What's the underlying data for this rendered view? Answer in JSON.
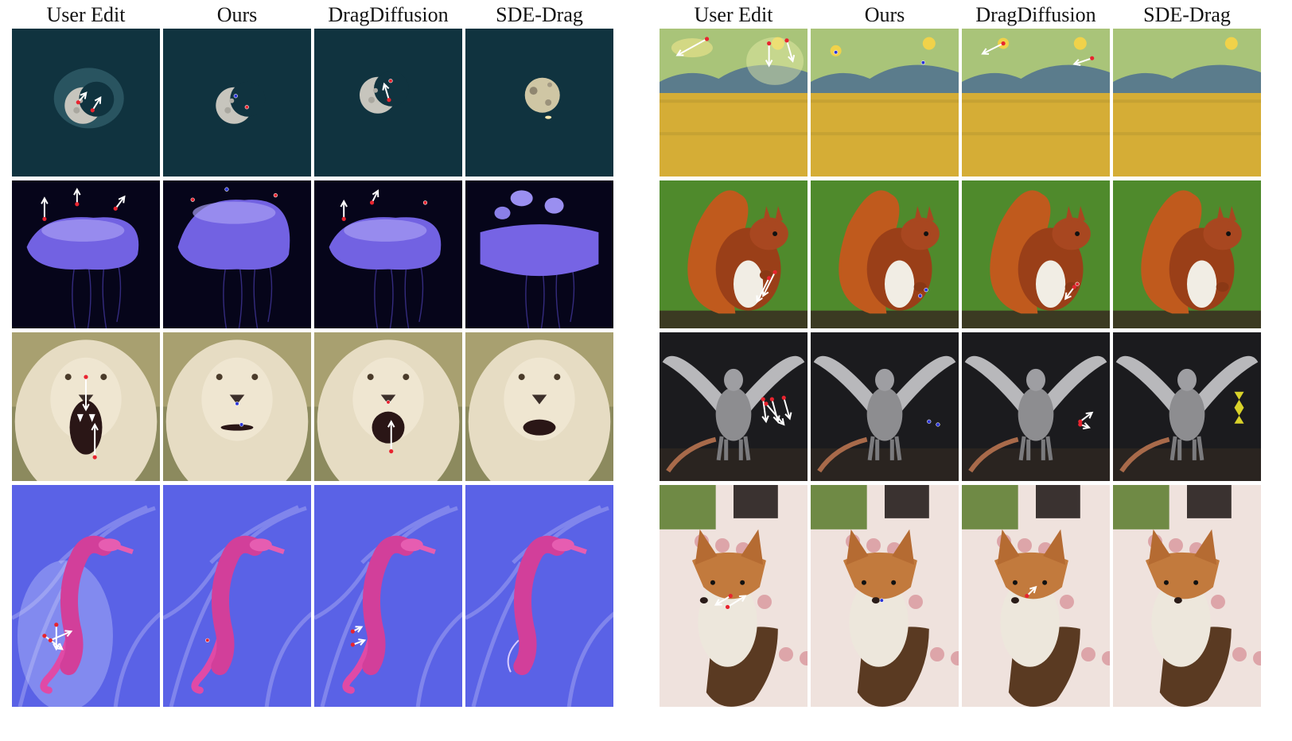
{
  "figure": {
    "left_panel": {
      "column_headers": [
        "User Edit",
        "Ours",
        "DragDiffusion",
        "SDE-Drag"
      ],
      "rows": [
        {
          "subject": "moon",
          "thumbnails": [
            "moon-user-edit",
            "moon-ours",
            "moon-dragdiffusion",
            "moon-sde-drag"
          ]
        },
        {
          "subject": "jellyfish",
          "thumbnails": [
            "jellyfish-user-edit",
            "jellyfish-ours",
            "jellyfish-dragdiffusion",
            "jellyfish-sde-drag"
          ]
        },
        {
          "subject": "lion",
          "thumbnails": [
            "lion-user-edit",
            "lion-ours",
            "lion-dragdiffusion",
            "lion-sde-drag"
          ]
        },
        {
          "subject": "seahorse",
          "thumbnails": [
            "seahorse-user-edit",
            "seahorse-ours",
            "seahorse-dragdiffusion",
            "seahorse-sde-drag"
          ]
        }
      ]
    },
    "right_panel": {
      "column_headers": [
        "User Edit",
        "Ours",
        "DragDiffusion",
        "SDE-Drag"
      ],
      "rows": [
        {
          "subject": "wheat-field-painting",
          "thumbnails": [
            "painting-user-edit",
            "painting-ours",
            "painting-dragdiffusion",
            "painting-sde-drag"
          ]
        },
        {
          "subject": "squirrel",
          "thumbnails": [
            "squirrel-user-edit",
            "squirrel-ours",
            "squirrel-dragdiffusion",
            "squirrel-sde-drag"
          ]
        },
        {
          "subject": "griffin",
          "thumbnails": [
            "griffin-user-edit",
            "griffin-ours",
            "griffin-dragdiffusion",
            "griffin-sde-drag"
          ]
        },
        {
          "subject": "fox-trophy",
          "thumbnails": [
            "fox-user-edit",
            "fox-ours",
            "fox-dragdiffusion",
            "fox-sde-drag"
          ]
        }
      ]
    },
    "colors": {
      "handle_point": "#e8242f",
      "target_point": "#2b35d8",
      "drag_arrow": "#ffffff"
    }
  }
}
